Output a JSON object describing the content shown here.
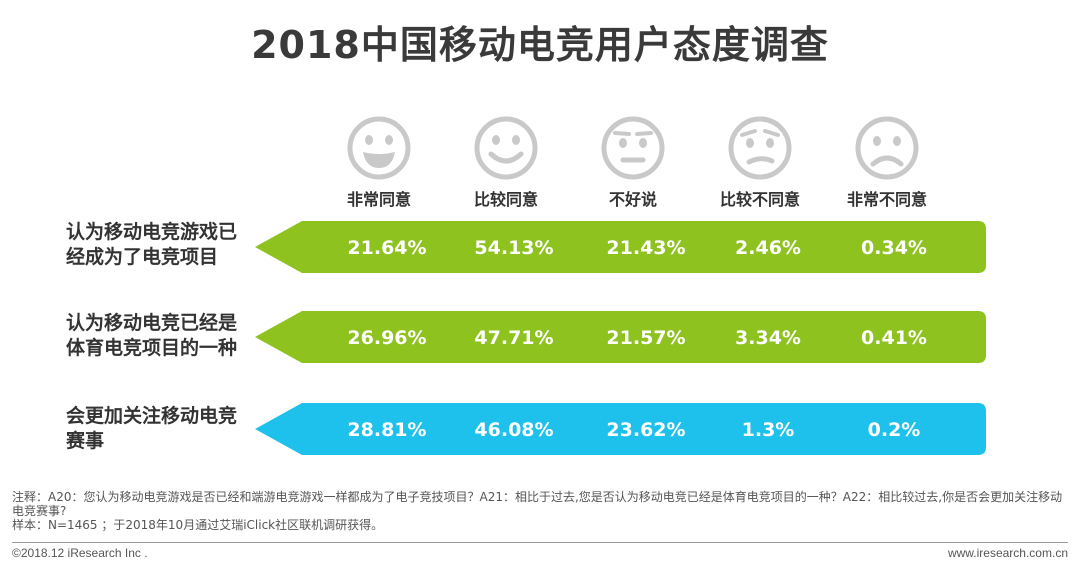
{
  "header": {
    "title": "2018中国移动电竞用户态度调查"
  },
  "chart_data": {
    "type": "table",
    "title": "2018中国移动电竞用户态度调查",
    "columns": [
      "非常同意",
      "比较同意",
      "不好说",
      "比较不同意",
      "非常不同意"
    ],
    "column_icons": [
      "very-happy-face-icon",
      "smiling-face-icon",
      "neutral-face-icon",
      "slightly-frowning-face-icon",
      "sad-face-icon"
    ],
    "rows": [
      {
        "label_lines": [
          "认为移动电竞游戏已",
          "经成为了电竞项目"
        ],
        "values": [
          "21.64%",
          "54.13%",
          "21.43%",
          "2.46%",
          "0.34%"
        ],
        "color": "#8dc21f"
      },
      {
        "label_lines": [
          "认为移动电竞已经是",
          "体育电竞项目的一种"
        ],
        "values": [
          "26.96%",
          "47.71%",
          "21.57%",
          "3.34%",
          "0.41%"
        ],
        "color": "#8dc21f"
      },
      {
        "label_lines": [
          "会更加关注移动电竞",
          "赛事"
        ],
        "values": [
          "28.81%",
          "46.08%",
          "23.62%",
          "1.3%",
          "0.2%"
        ],
        "color": "#1ec1ec"
      }
    ]
  },
  "notes": {
    "line1": "注释：A20：您认为移动电竞游戏是否已经和端游电竞游戏一样都成为了电子竞技项目？A21：相比于过去,您是否认为移动电竞已经是体育电竞项目的一种？A22：相比较过去,你是否会更加关注移动电竞赛事?",
    "line2": "样本：N=1465 ；于2018年10月通过艾瑞iClick社区联机调研获得。"
  },
  "footer": {
    "copyright": "©2018.12 iResearch Inc .",
    "website": "www.iresearch.com.cn"
  },
  "colors": {
    "green": "#8dc21f",
    "blue": "#1ec1ec",
    "face": "#c9c9c9"
  }
}
